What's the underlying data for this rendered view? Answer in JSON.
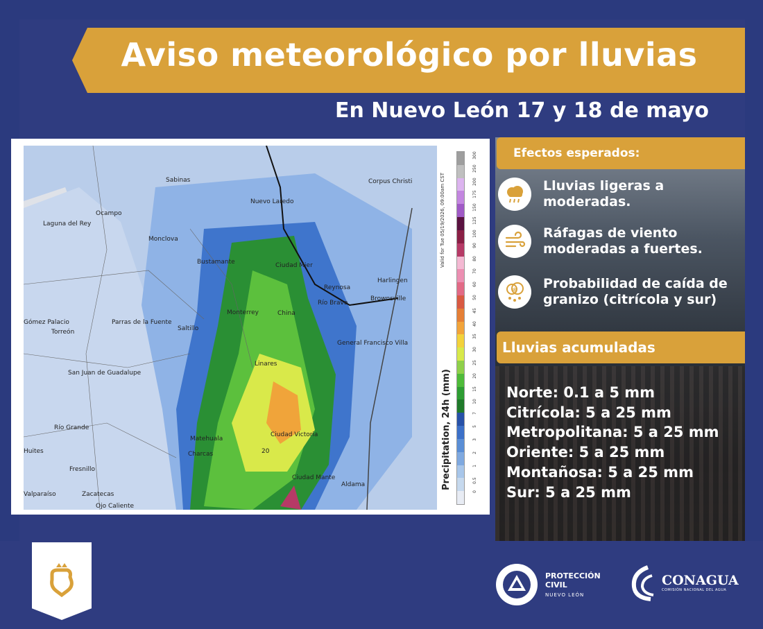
{
  "header": {
    "title": "Aviso meteorológico por lluvias",
    "subtitle": "En Nuevo León  17 y 18 de mayo"
  },
  "map": {
    "valid_text": "Valid for Tue 05/19/2026, 09:00am CST",
    "legend_label": "Precipitation, 24h (mm)",
    "legend_ticks": [
      "0",
      "0.5",
      "1",
      "2",
      "3",
      "5",
      "7",
      "10",
      "15",
      "20",
      "25",
      "30",
      "35",
      "40",
      "45",
      "50",
      "60",
      "70",
      "80",
      "90",
      "100",
      "125",
      "150",
      "175",
      "200",
      "250",
      "300"
    ],
    "legend_colors": [
      "#e8ecf4",
      "#c6d9ee",
      "#a8c6ea",
      "#7fa9e0",
      "#5a8ed6",
      "#3c70c8",
      "#2751a8",
      "#1f7a2a",
      "#2e9d33",
      "#4fbb3a",
      "#8fd04a",
      "#d8e94a",
      "#f3d23b",
      "#f2a43a",
      "#e57f36",
      "#d95a42",
      "#e26a86",
      "#ec8fb2",
      "#f4b9d3",
      "#b63a66",
      "#8a1f45",
      "#5a1240",
      "#a05ac6",
      "#c386e0",
      "#dcb4ef",
      "#bfbfbf",
      "#9e9e9e"
    ],
    "cities": [
      "Sabinas",
      "Corpus Christi",
      "Nuevo Laredo",
      "Ocampo",
      "Laguna del Rey",
      "Monclova",
      "Bustamante",
      "Ciudad Mier",
      "Harlingen",
      "Reynosa",
      "Brownsville",
      "Río Bravo",
      "Monterrey",
      "China",
      "Gómez Palacio",
      "Parras de la Fuente",
      "Torreón",
      "Saltillo",
      "General Francisco Villa",
      "Linares",
      "San Juan de Guadalupe",
      "Río Grande",
      "Matehuala",
      "Ciudad Victoria",
      "Charcas",
      "Fresnillo",
      "Ciudad Mante",
      "Aldama",
      "Valparaíso",
      "Zacatecas",
      "Ojo Caliente",
      "Huites",
      "20"
    ]
  },
  "effects": {
    "heading": "Efectos esperados:",
    "items": [
      {
        "text": "Lluvias ligeras a moderadas.",
        "icon": "rain-cloud-icon"
      },
      {
        "text": "Ráfagas de viento moderadas a fuertes.",
        "icon": "wind-icon"
      },
      {
        "text": "Probabilidad de caída de granizo (citrícola y sur)",
        "icon": "hail-icon"
      }
    ]
  },
  "rain": {
    "heading": "Lluvias acumuladas",
    "lines": [
      "Norte: 0.1 a 5 mm",
      "Citrícola: 5 a 25 mm",
      "Metropolitana: 5 a 25 mm",
      "Oriente: 5 a 25 mm",
      "Montañosa: 5 a 25 mm",
      "Sur: 5 a 25 mm"
    ]
  },
  "footer": {
    "pc_line1": "PROTECCIÓN",
    "pc_line2": "CIVIL",
    "pc_line3": "NUEVO LEÓN",
    "conagua": "CONAGUA",
    "conagua_sub": "COMISIÓN NACIONAL DEL AGUA"
  },
  "colors": {
    "navy": "#2f3c80",
    "gold": "#d9a13a"
  }
}
